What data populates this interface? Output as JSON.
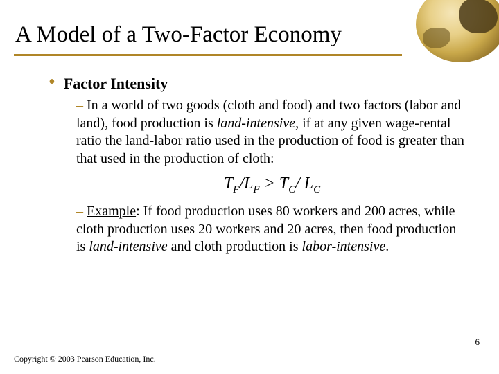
{
  "title": "A Model of a Two-Factor Economy",
  "bullet": {
    "heading": "Factor Intensity",
    "para1_prefix": "In a world of two goods (cloth and food) and two factors (labor and land), food production is ",
    "para1_italic": "land-intensive",
    "para1_suffix": ", if at any given wage-rental ratio the land-labor ratio used in the production of food is greater than that used in the production of cloth:",
    "formula": {
      "t": "T",
      "f": "F",
      "slash": "/",
      "l": "L",
      "gt": " > ",
      "c": "C"
    },
    "example_label": "Example",
    "example_prefix": ": If food production uses 80 workers and 200 acres, while cloth production uses 20 workers and 20 acres, then food production is ",
    "example_italic1": "land-intensive",
    "example_mid": " and cloth production is ",
    "example_italic2": "labor-intensive",
    "example_end": "."
  },
  "page_number": "6",
  "copyright": "Copyright © 2003 Pearson Education, Inc.",
  "colors": {
    "accent": "#b08628",
    "text": "#000000",
    "background": "#ffffff"
  }
}
